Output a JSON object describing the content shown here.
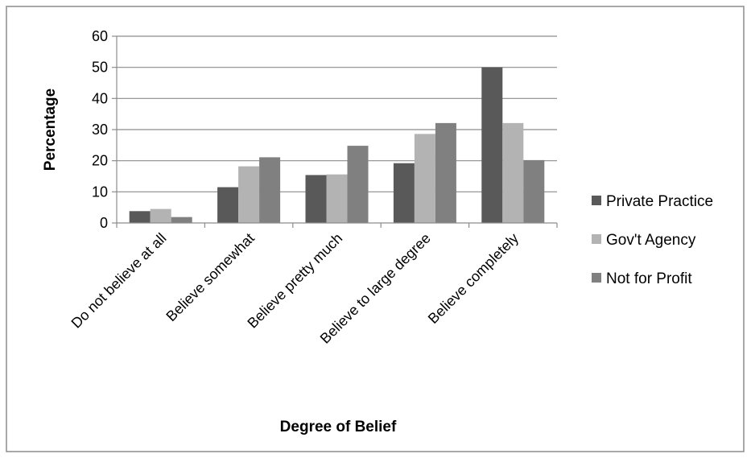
{
  "chart_data": {
    "type": "bar",
    "title": "",
    "xlabel": "Degree of Belief",
    "ylabel": "Percentage",
    "categories": [
      "Do not believe at all",
      "Believe somewhat",
      "Believe pretty much",
      "Believe to large degree",
      "Believe completely"
    ],
    "series": [
      {
        "name": "Private Practice",
        "color": "#595959",
        "values": [
          3.8,
          11.5,
          15.4,
          19.2,
          50.0
        ]
      },
      {
        "name": "Gov't Agency",
        "color": "#b3b3b3",
        "values": [
          4.5,
          18.2,
          15.6,
          28.6,
          32.1
        ]
      },
      {
        "name": "Not for Profit",
        "color": "#808080",
        "values": [
          1.9,
          21.1,
          24.8,
          32.1,
          20.2
        ]
      }
    ],
    "ylim": [
      0,
      60
    ],
    "yticks": [
      0,
      10,
      20,
      30,
      40,
      50,
      60
    ],
    "grid": true,
    "legend_position": "right"
  }
}
